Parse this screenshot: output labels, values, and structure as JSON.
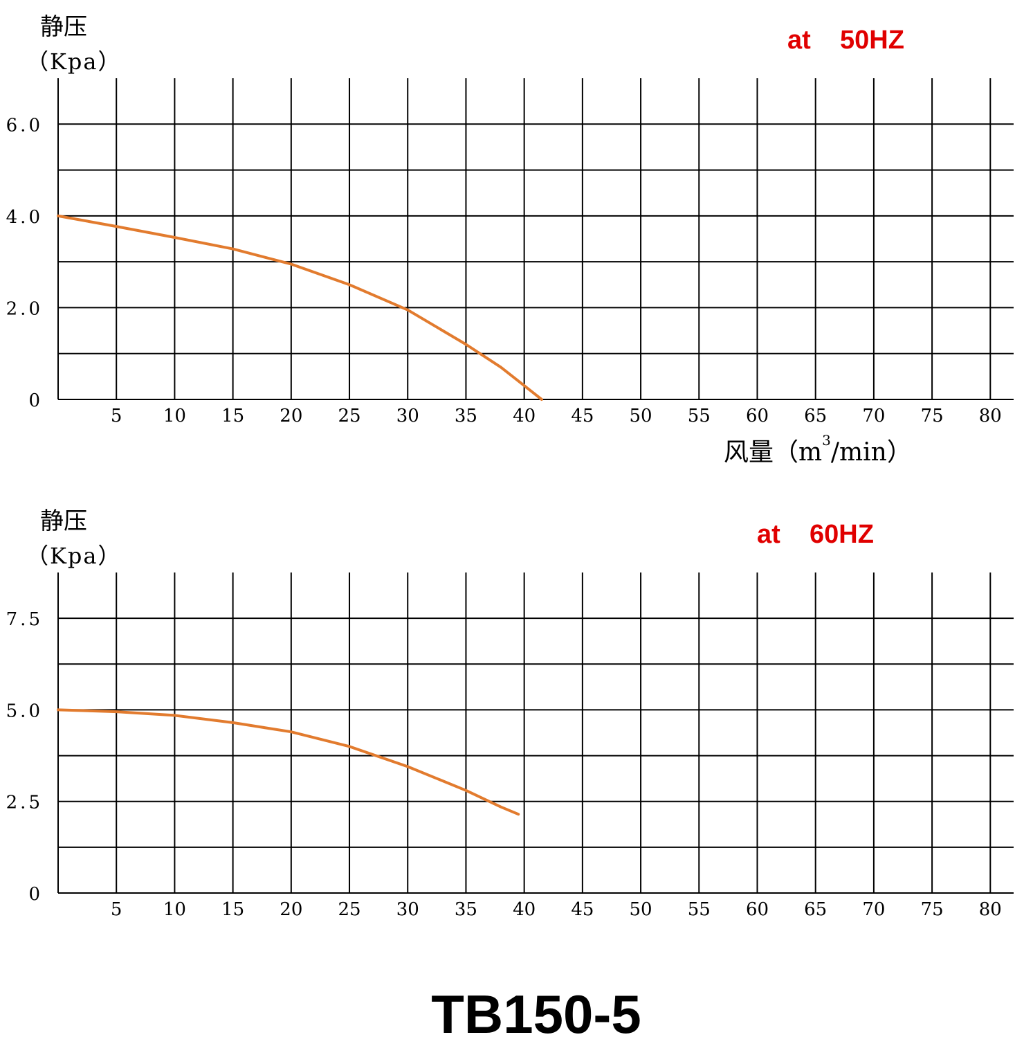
{
  "model_title": "TB150-5",
  "colors": {
    "curve": "#E27B2E",
    "freq_label": "#E00000",
    "grid": "#000000"
  },
  "chart_data": [
    {
      "type": "line",
      "ylabel_line1": "静压",
      "ylabel_line2": "（Kpa）",
      "freq_label": "at    50HZ",
      "xlabel_main": "风量（m",
      "xlabel_sup": "3",
      "xlabel_tail": "/min）",
      "xlim": [
        0,
        82
      ],
      "ylim": [
        0,
        7
      ],
      "x_ticks": [
        5,
        10,
        15,
        20,
        25,
        30,
        35,
        40,
        45,
        50,
        55,
        60,
        65,
        70,
        75,
        80
      ],
      "x_tick_labels": [
        "5",
        "10",
        "15",
        "20",
        "25",
        "30",
        "35",
        "40",
        "45",
        "50",
        "55",
        "60",
        "65",
        "70",
        "75",
        "80"
      ],
      "y_ticks": [
        0,
        2,
        4,
        6
      ],
      "y_tick_labels": [
        "0",
        "2.0",
        "4.0",
        "6.0"
      ],
      "grid": true,
      "series": [
        {
          "x": [
            0,
            5,
            10,
            15,
            20,
            25,
            30,
            35,
            38,
            40,
            41.5
          ],
          "y": [
            4.0,
            3.77,
            3.53,
            3.28,
            2.95,
            2.5,
            1.95,
            1.2,
            0.7,
            0.3,
            0.0
          ]
        }
      ]
    },
    {
      "type": "line",
      "ylabel_line1": "静压",
      "ylabel_line2": "（Kpa）",
      "freq_label": "at    60HZ",
      "xlim": [
        0,
        82
      ],
      "ylim": [
        0,
        8.75
      ],
      "x_ticks": [
        5,
        10,
        15,
        20,
        25,
        30,
        35,
        40,
        45,
        50,
        55,
        60,
        65,
        70,
        75,
        80
      ],
      "x_tick_labels": [
        "5",
        "10",
        "15",
        "20",
        "25",
        "30",
        "35",
        "40",
        "45",
        "50",
        "55",
        "60",
        "65",
        "70",
        "75",
        "80"
      ],
      "y_ticks": [
        0,
        2.5,
        5.0,
        7.5
      ],
      "y_tick_labels": [
        "0",
        "2.5",
        "5.0",
        "7.5"
      ],
      "grid": true,
      "series": [
        {
          "x": [
            0,
            5,
            10,
            15,
            20,
            25,
            30,
            35,
            38,
            39.5
          ],
          "y": [
            5.0,
            4.95,
            4.85,
            4.65,
            4.4,
            4.0,
            3.45,
            2.8,
            2.35,
            2.15
          ]
        }
      ]
    }
  ]
}
